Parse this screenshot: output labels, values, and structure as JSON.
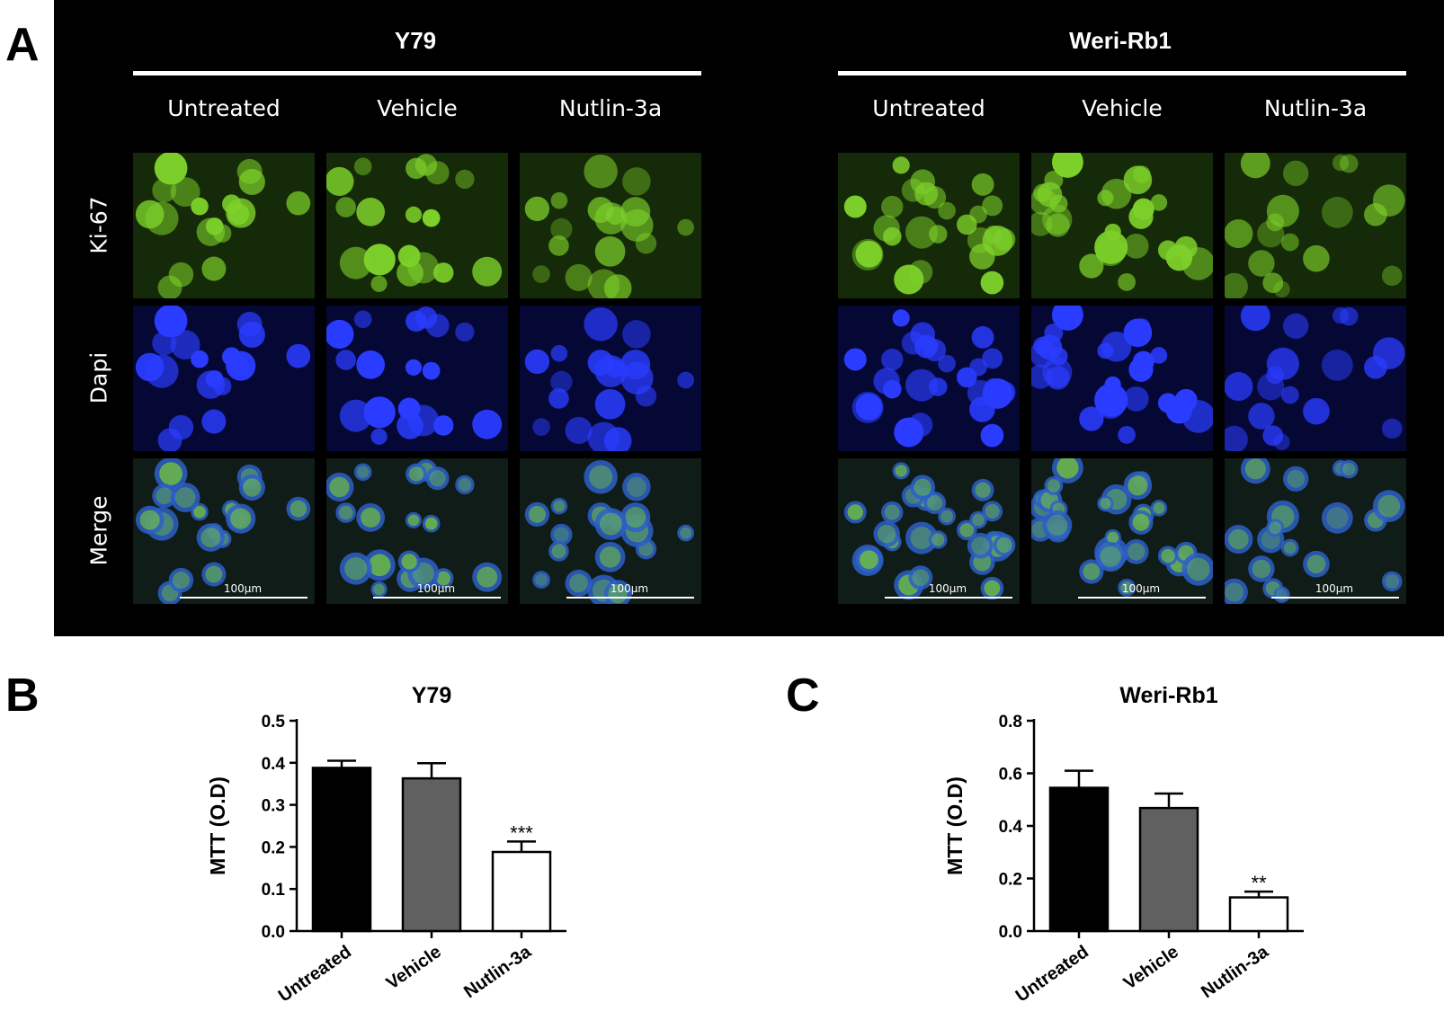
{
  "figure": {
    "panel_a": {
      "letter": "A",
      "groups": [
        {
          "title": "Y79",
          "columns": [
            "Untreated",
            "Vehicle",
            "Nutlin-3a"
          ],
          "scale_labels": [
            "100µm",
            "100µm",
            "100µm"
          ]
        },
        {
          "title": "Weri-Rb1",
          "columns": [
            "Untreated",
            "Vehicle",
            "Nutlin-3a"
          ],
          "scale_labels": [
            "100µm",
            "100µm",
            "100µm"
          ]
        }
      ],
      "rows": [
        "Ki-67",
        "Dapi",
        "Merge"
      ],
      "colors": {
        "ki67": "#7dd12a",
        "dapi": "#2a3cff",
        "merge_bg": "#0f1c18",
        "ki67_bg": "#152a08",
        "dapi_bg": "#050835"
      }
    },
    "panel_b_letter": "B",
    "panel_c_letter": "C"
  },
  "chart_data": [
    {
      "type": "bar",
      "title": "Y79",
      "ylabel": "MTT (O.D)",
      "xlabel": "",
      "categories": [
        "Untreated",
        "Vehicle",
        "Nutlin-3a"
      ],
      "values": [
        0.388,
        0.363,
        0.188
      ],
      "errors": [
        0.017,
        0.036,
        0.025
      ],
      "annotations": [
        "",
        "",
        "***"
      ],
      "bar_colors": [
        "#000000",
        "#606060",
        "#ffffff"
      ],
      "ylim": [
        0,
        0.5
      ],
      "yticks": [
        "0.0",
        "0.1",
        "0.2",
        "0.3",
        "0.4",
        "0.5"
      ]
    },
    {
      "type": "bar",
      "title": "Weri-Rb1",
      "ylabel": "MTT (O.D)",
      "xlabel": "",
      "categories": [
        "Untreated",
        "Vehicle",
        "Nutlin-3a"
      ],
      "values": [
        0.545,
        0.468,
        0.128
      ],
      "errors": [
        0.065,
        0.055,
        0.022
      ],
      "annotations": [
        "",
        "",
        "**"
      ],
      "bar_colors": [
        "#000000",
        "#606060",
        "#ffffff"
      ],
      "ylim": [
        0,
        0.8
      ],
      "yticks": [
        "0.0",
        "0.2",
        "0.4",
        "0.6",
        "0.8"
      ]
    }
  ]
}
